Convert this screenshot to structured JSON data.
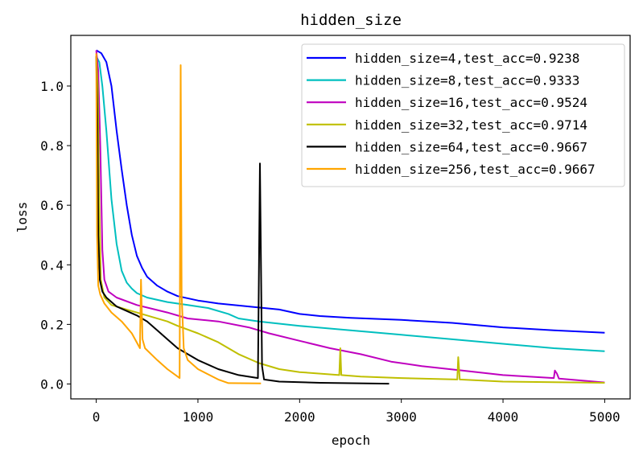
{
  "chart_data": {
    "type": "line",
    "title": "hidden_size",
    "xlabel": "epoch",
    "ylabel": "loss",
    "xlim": [
      -250,
      5250
    ],
    "ylim": [
      -0.05,
      1.17
    ],
    "xticks": [
      0,
      1000,
      2000,
      3000,
      4000,
      5000
    ],
    "xtick_labels": [
      "0",
      "1000",
      "2000",
      "3000",
      "4000",
      "5000"
    ],
    "yticks": [
      0.0,
      0.2,
      0.4,
      0.6,
      0.8,
      1.0
    ],
    "ytick_labels": [
      "0.0",
      "0.2",
      "0.4",
      "0.6",
      "0.8",
      "1.0"
    ],
    "grid": false,
    "legend_position": "top-right",
    "series": [
      {
        "name": "hidden_size=4,test_acc=0.9238",
        "color": "#0000ff",
        "points": [
          [
            0,
            1.12
          ],
          [
            50,
            1.11
          ],
          [
            100,
            1.08
          ],
          [
            150,
            1.0
          ],
          [
            200,
            0.85
          ],
          [
            250,
            0.72
          ],
          [
            300,
            0.6
          ],
          [
            350,
            0.5
          ],
          [
            400,
            0.43
          ],
          [
            450,
            0.39
          ],
          [
            500,
            0.36
          ],
          [
            600,
            0.33
          ],
          [
            700,
            0.31
          ],
          [
            800,
            0.295
          ],
          [
            1000,
            0.28
          ],
          [
            1200,
            0.27
          ],
          [
            1500,
            0.26
          ],
          [
            1800,
            0.25
          ],
          [
            2000,
            0.235
          ],
          [
            2200,
            0.228
          ],
          [
            2500,
            0.222
          ],
          [
            3000,
            0.215
          ],
          [
            3500,
            0.205
          ],
          [
            4000,
            0.19
          ],
          [
            4500,
            0.18
          ],
          [
            5000,
            0.172
          ]
        ]
      },
      {
        "name": "hidden_size=8,test_acc=0.9333",
        "color": "#00bfbf",
        "points": [
          [
            0,
            1.1
          ],
          [
            30,
            1.08
          ],
          [
            60,
            1.0
          ],
          [
            100,
            0.85
          ],
          [
            150,
            0.62
          ],
          [
            200,
            0.47
          ],
          [
            250,
            0.38
          ],
          [
            300,
            0.34
          ],
          [
            350,
            0.32
          ],
          [
            400,
            0.305
          ],
          [
            500,
            0.29
          ],
          [
            700,
            0.275
          ],
          [
            900,
            0.265
          ],
          [
            1100,
            0.255
          ],
          [
            1300,
            0.235
          ],
          [
            1400,
            0.22
          ],
          [
            1600,
            0.21
          ],
          [
            2000,
            0.195
          ],
          [
            2500,
            0.18
          ],
          [
            3000,
            0.165
          ],
          [
            3500,
            0.15
          ],
          [
            4000,
            0.135
          ],
          [
            4500,
            0.12
          ],
          [
            5000,
            0.11
          ]
        ]
      },
      {
        "name": "hidden_size=16,test_acc=0.9524",
        "color": "#bf00bf",
        "points": [
          [
            0,
            1.12
          ],
          [
            20,
            1.05
          ],
          [
            40,
            0.8
          ],
          [
            60,
            0.45
          ],
          [
            80,
            0.35
          ],
          [
            120,
            0.31
          ],
          [
            200,
            0.29
          ],
          [
            400,
            0.265
          ],
          [
            700,
            0.24
          ],
          [
            900,
            0.22
          ],
          [
            1200,
            0.21
          ],
          [
            1500,
            0.19
          ],
          [
            1700,
            0.17
          ],
          [
            2000,
            0.145
          ],
          [
            2300,
            0.12
          ],
          [
            2600,
            0.1
          ],
          [
            2900,
            0.075
          ],
          [
            3200,
            0.06
          ],
          [
            3600,
            0.045
          ],
          [
            4000,
            0.03
          ],
          [
            4500,
            0.02
          ],
          [
            4510,
            0.045
          ],
          [
            4530,
            0.035
          ],
          [
            4550,
            0.018
          ],
          [
            5000,
            0.005
          ]
        ]
      },
      {
        "name": "hidden_size=32,test_acc=0.9714",
        "color": "#bfbf00",
        "points": [
          [
            0,
            1.1
          ],
          [
            15,
            1.0
          ],
          [
            30,
            0.6
          ],
          [
            45,
            0.35
          ],
          [
            80,
            0.29
          ],
          [
            150,
            0.265
          ],
          [
            300,
            0.25
          ],
          [
            500,
            0.23
          ],
          [
            700,
            0.21
          ],
          [
            800,
            0.195
          ],
          [
            1000,
            0.17
          ],
          [
            1200,
            0.14
          ],
          [
            1400,
            0.1
          ],
          [
            1600,
            0.07
          ],
          [
            1800,
            0.05
          ],
          [
            2000,
            0.04
          ],
          [
            2390,
            0.03
          ],
          [
            2400,
            0.12
          ],
          [
            2410,
            0.03
          ],
          [
            2600,
            0.025
          ],
          [
            3000,
            0.02
          ],
          [
            3550,
            0.015
          ],
          [
            3560,
            0.09
          ],
          [
            3575,
            0.015
          ],
          [
            4000,
            0.008
          ],
          [
            5000,
            0.004
          ]
        ]
      },
      {
        "name": "hidden_size=64,test_acc=0.9667",
        "color": "#000000",
        "points": [
          [
            0,
            1.1
          ],
          [
            10,
            0.9
          ],
          [
            20,
            0.5
          ],
          [
            35,
            0.35
          ],
          [
            60,
            0.31
          ],
          [
            100,
            0.29
          ],
          [
            200,
            0.26
          ],
          [
            400,
            0.23
          ],
          [
            500,
            0.21
          ],
          [
            600,
            0.18
          ],
          [
            700,
            0.15
          ],
          [
            800,
            0.12
          ],
          [
            1000,
            0.08
          ],
          [
            1200,
            0.05
          ],
          [
            1400,
            0.03
          ],
          [
            1590,
            0.02
          ],
          [
            1610,
            0.74
          ],
          [
            1630,
            0.06
          ],
          [
            1650,
            0.015
          ],
          [
            1800,
            0.008
          ],
          [
            2200,
            0.004
          ],
          [
            2880,
            0.001
          ]
        ]
      },
      {
        "name": "hidden_size=256,test_acc=0.9667",
        "color": "#ffa500",
        "points": [
          [
            0,
            1.11
          ],
          [
            8,
            0.5
          ],
          [
            20,
            0.33
          ],
          [
            40,
            0.3
          ],
          [
            80,
            0.27
          ],
          [
            150,
            0.24
          ],
          [
            250,
            0.21
          ],
          [
            350,
            0.17
          ],
          [
            430,
            0.12
          ],
          [
            440,
            0.35
          ],
          [
            455,
            0.15
          ],
          [
            480,
            0.12
          ],
          [
            600,
            0.08
          ],
          [
            700,
            0.05
          ],
          [
            820,
            0.02
          ],
          [
            830,
            1.07
          ],
          [
            840,
            0.3
          ],
          [
            860,
            0.12
          ],
          [
            900,
            0.08
          ],
          [
            1000,
            0.05
          ],
          [
            1200,
            0.015
          ],
          [
            1300,
            0.003
          ],
          [
            1620,
            0.002
          ]
        ]
      }
    ]
  }
}
